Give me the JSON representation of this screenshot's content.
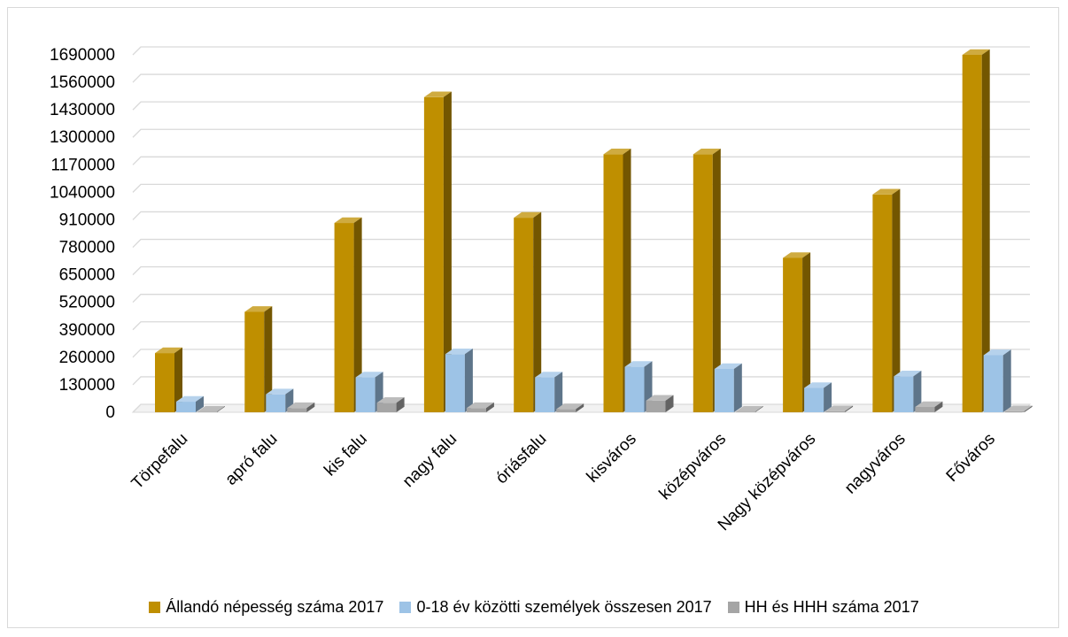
{
  "chart_data": {
    "type": "bar",
    "title": "",
    "xlabel": "",
    "ylabel": "",
    "ylim": [
      0,
      1690000
    ],
    "yticks": [
      0,
      130000,
      260000,
      390000,
      520000,
      650000,
      780000,
      910000,
      1040000,
      1170000,
      1300000,
      1430000,
      1560000,
      1690000
    ],
    "grid": true,
    "legend_position": "bottom",
    "categories": [
      "Törpefalu",
      "apró falu",
      "kis falu",
      "nagy falu",
      "óriásfalu",
      "kisváros",
      "középváros",
      "Nagy középváros",
      "nagyváros",
      "Főváros"
    ],
    "series": [
      {
        "name": "Állandó népesség száma 2017",
        "color": "#bf8f00",
        "values": [
          280000,
          475000,
          895000,
          1490000,
          920000,
          1220000,
          1220000,
          730000,
          1030000,
          1690000
        ]
      },
      {
        "name": "0-18 év közötti személyek összesen 2017",
        "color": "#9dc3e6",
        "values": [
          50000,
          85000,
          165000,
          275000,
          165000,
          215000,
          205000,
          115000,
          170000,
          270000
        ]
      },
      {
        "name": "HH és HHH száma 2017",
        "color": "#a5a5a5",
        "values": [
          3000,
          20000,
          45000,
          20000,
          15000,
          55000,
          3000,
          5000,
          25000,
          5000
        ]
      }
    ]
  }
}
